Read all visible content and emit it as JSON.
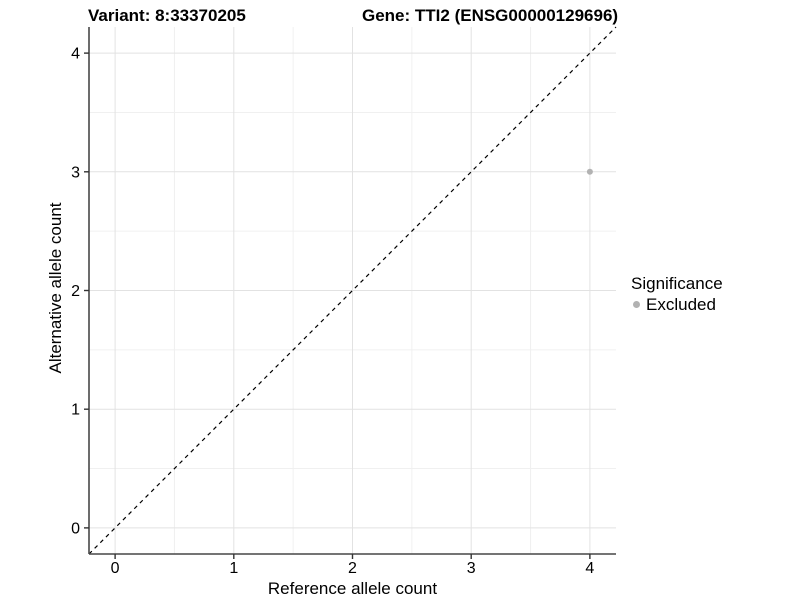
{
  "chart_data": {
    "type": "scatter",
    "titles": {
      "left": "Variant: 8:33370205",
      "right": "Gene: TTI2 (ENSG00000129696)"
    },
    "xlabel": "Reference allele count",
    "ylabel": "Alternative allele count",
    "xlim": [
      -0.22,
      4.22
    ],
    "ylim": [
      -0.22,
      4.22
    ],
    "x_ticks": [
      0,
      1,
      2,
      3,
      4
    ],
    "y_ticks": [
      0,
      1,
      2,
      3,
      4
    ],
    "x_minor": [
      0.5,
      1.5,
      2.5,
      3.5
    ],
    "y_minor": [
      0.5,
      1.5,
      2.5,
      3.5
    ],
    "grid": "major+minor",
    "reference_line": {
      "type": "identity",
      "style": "dashed",
      "from": [
        -0.22,
        -0.22
      ],
      "to": [
        4.22,
        4.22
      ]
    },
    "series": [
      {
        "name": "Excluded",
        "color": "#b2b2b2",
        "points": [
          {
            "x": 4,
            "y": 3
          }
        ]
      }
    ],
    "legend": {
      "title": "Significance",
      "position": "right",
      "items": [
        {
          "label": "Excluded",
          "color": "#b2b2b2",
          "marker": "circle"
        }
      ]
    },
    "colors": {
      "background": "#ffffff",
      "grid_major": "#e2e2e2",
      "grid_minor": "#f0f0f0",
      "axis_line": "#474747",
      "tick": "#333333",
      "text": "#000000",
      "reference_line": "#000000"
    }
  }
}
